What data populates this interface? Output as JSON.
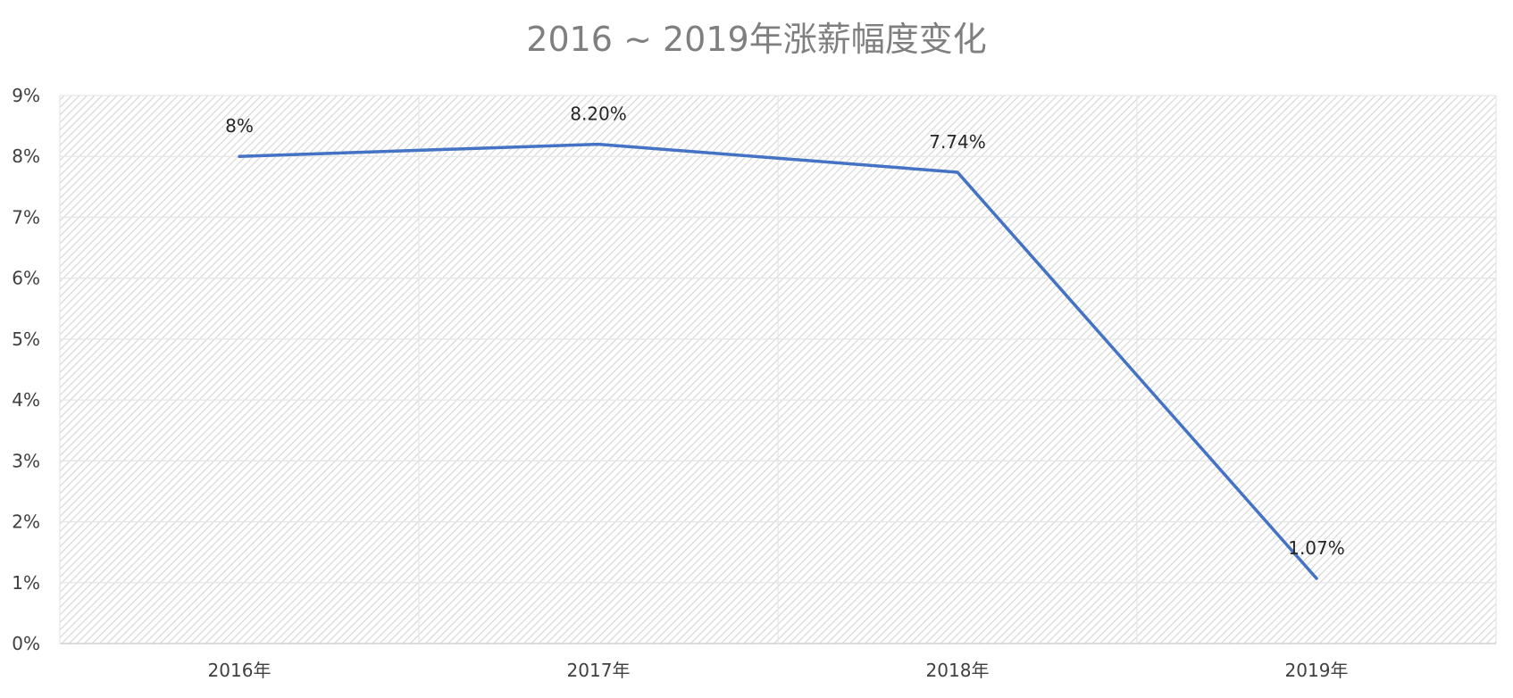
{
  "chart_data": {
    "type": "line",
    "title": "2016 ~ 2019年涨薪幅度变化",
    "categories": [
      "2016年",
      "2017年",
      "2018年",
      "2019年"
    ],
    "series": [
      {
        "values": [
          8.0,
          8.2,
          7.74,
          1.07
        ],
        "data_labels": [
          "8%",
          "8.20%",
          "7.74%",
          "1.07%"
        ],
        "color": "#4472c4"
      }
    ],
    "y_unit": "%",
    "y_ticks": [
      "0%",
      "1%",
      "2%",
      "3%",
      "4%",
      "5%",
      "6%",
      "7%",
      "8%",
      "9%"
    ],
    "ylim": [
      0,
      9
    ],
    "grid": true,
    "legend": "none",
    "plot_background": "diagonal-hatch"
  }
}
